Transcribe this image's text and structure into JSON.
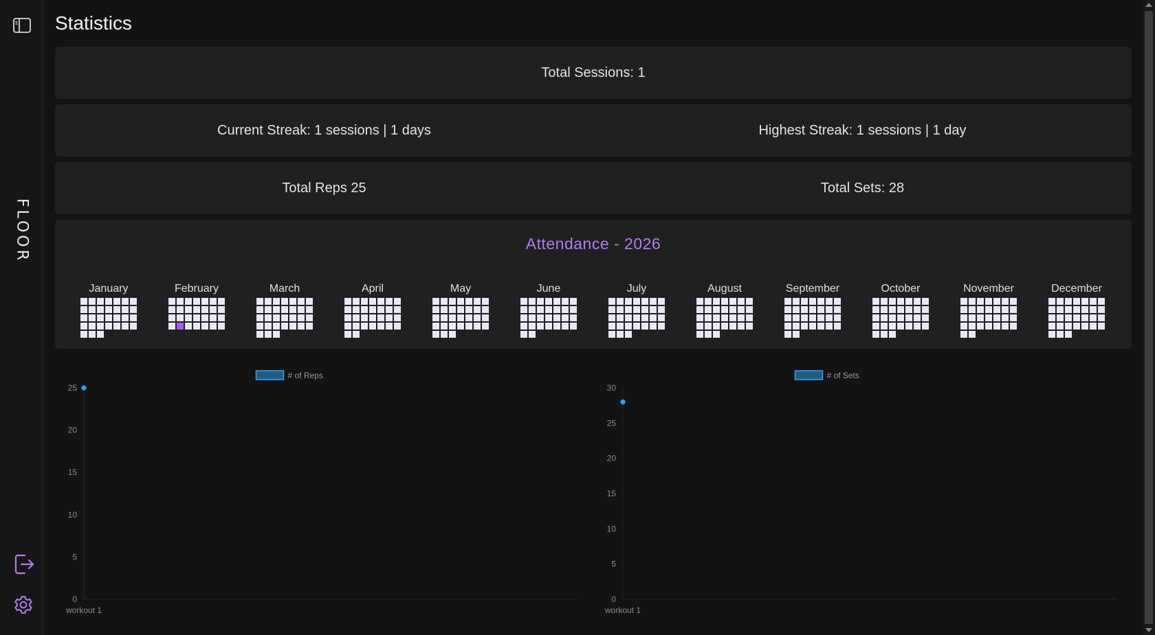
{
  "sidebar": {
    "brand": "FLOOR",
    "toggle_icon": "sidebar-toggle-icon",
    "logout_icon": "logout-icon",
    "settings_icon": "gear-icon",
    "accent": "#b37cf0"
  },
  "page": {
    "title": "Statistics"
  },
  "stats": {
    "total_sessions": "Total Sessions: 1",
    "current_streak": "Current Streak: 1 sessions | 1 days",
    "highest_streak": "Highest Streak: 1 sessions | 1 day",
    "total_reps": "Total Reps 25",
    "total_sets": "Total Sets: 28"
  },
  "attendance": {
    "title": "Attendance - 2026",
    "active_color": "#a560f0",
    "months": [
      {
        "name": "January",
        "offset": 0,
        "days": 31,
        "active": []
      },
      {
        "name": "February",
        "offset": 0,
        "days": 28,
        "active": [
          22
        ]
      },
      {
        "name": "March",
        "offset": 0,
        "days": 31,
        "active": []
      },
      {
        "name": "April",
        "offset": 0,
        "days": 30,
        "active": []
      },
      {
        "name": "May",
        "offset": 0,
        "days": 31,
        "active": []
      },
      {
        "name": "June",
        "offset": 0,
        "days": 30,
        "active": []
      },
      {
        "name": "July",
        "offset": 0,
        "days": 31,
        "active": []
      },
      {
        "name": "August",
        "offset": 0,
        "days": 31,
        "active": []
      },
      {
        "name": "September",
        "offset": 0,
        "days": 30,
        "active": []
      },
      {
        "name": "October",
        "offset": 0,
        "days": 31,
        "active": []
      },
      {
        "name": "November",
        "offset": 0,
        "days": 30,
        "active": []
      },
      {
        "name": "December",
        "offset": 0,
        "days": 31,
        "active": []
      }
    ]
  },
  "chart_data": [
    {
      "type": "line",
      "categories": [
        "workout 1"
      ],
      "series": [
        {
          "name": "# of Reps",
          "values": [
            25
          ],
          "color": "#36a2eb"
        }
      ],
      "ylim": [
        0,
        25
      ],
      "yticks": [
        0,
        5,
        10,
        15,
        20,
        25
      ],
      "legend": "top",
      "grid": false
    },
    {
      "type": "line",
      "categories": [
        "workout 1"
      ],
      "series": [
        {
          "name": "# of Sets",
          "values": [
            28
          ],
          "color": "#36a2eb"
        }
      ],
      "ylim": [
        0,
        30
      ],
      "yticks": [
        0,
        5,
        10,
        15,
        20,
        25,
        30
      ],
      "legend": "top",
      "grid": false
    }
  ]
}
